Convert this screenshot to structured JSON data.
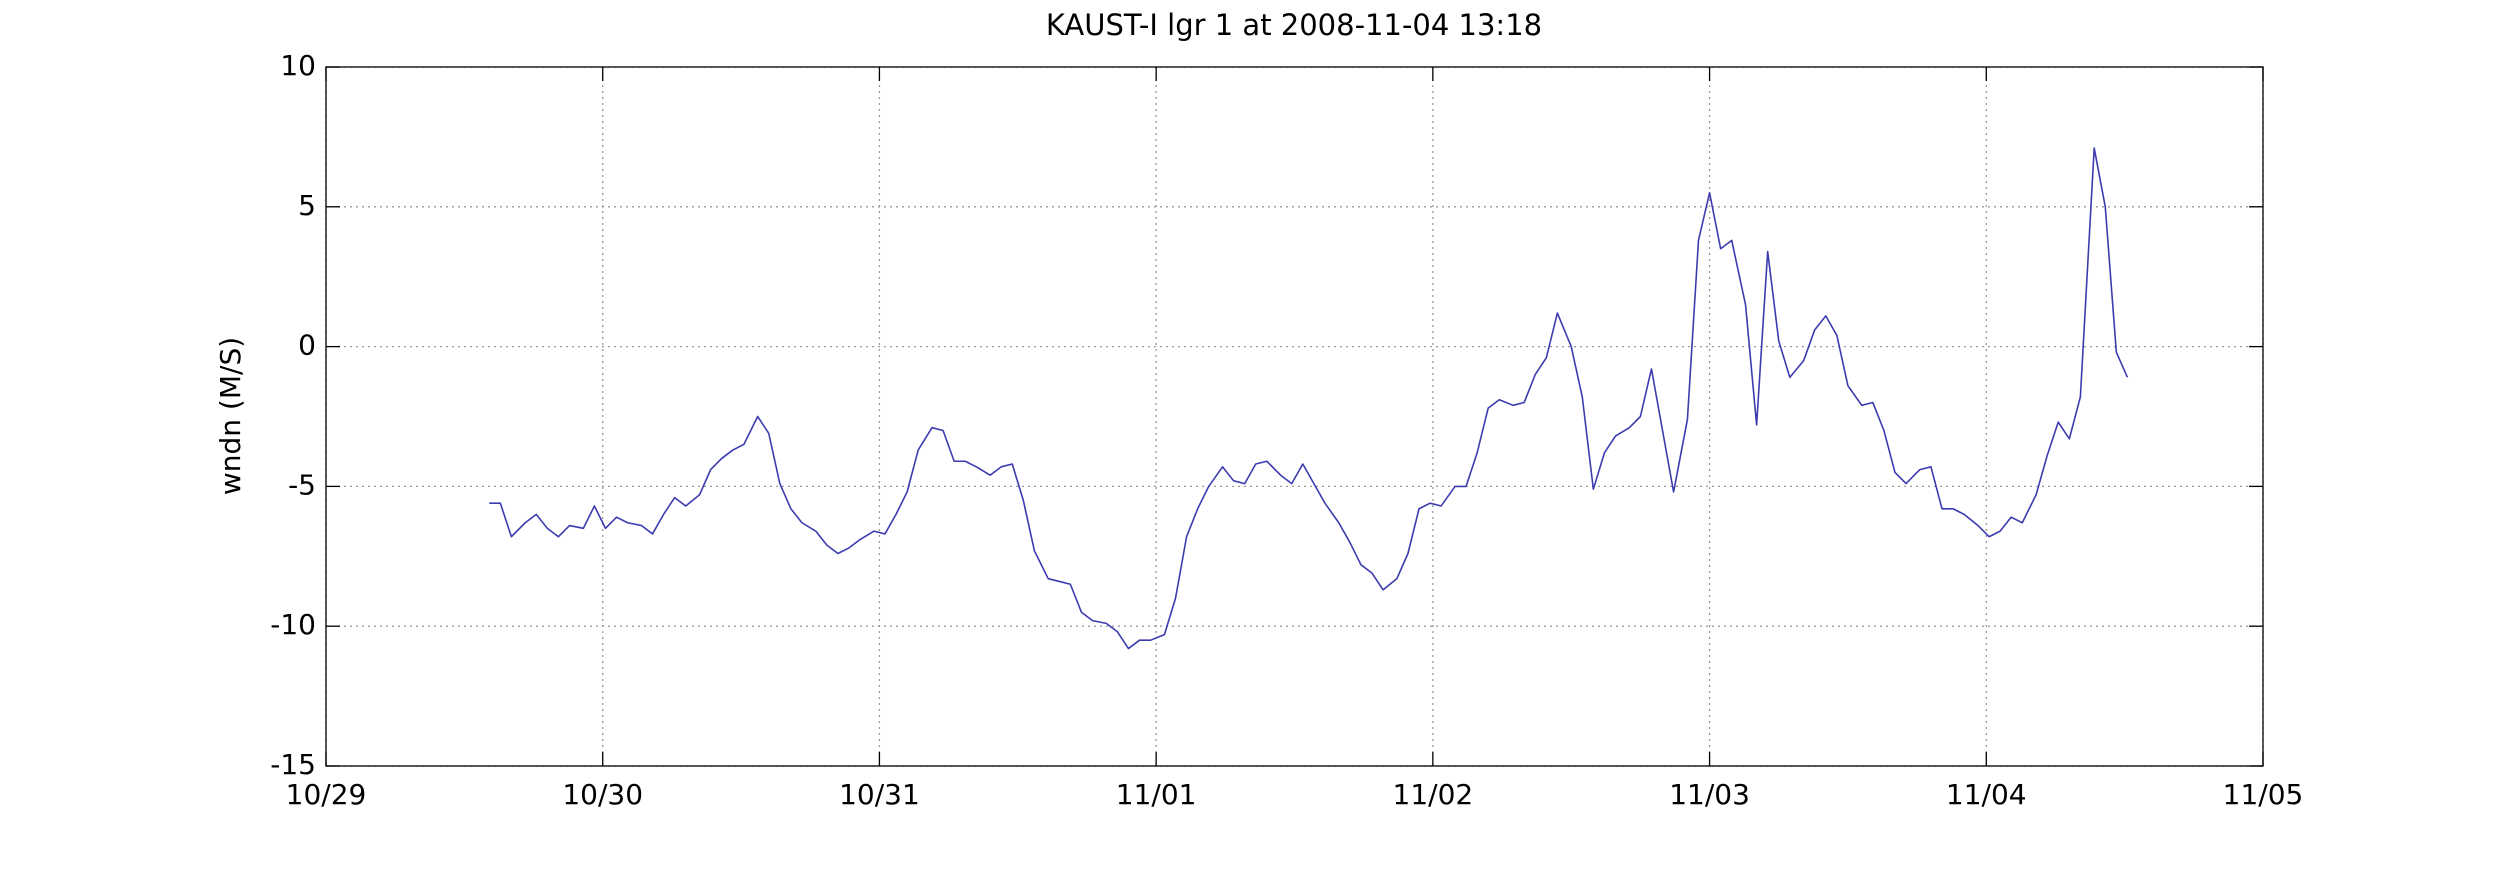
{
  "chart_data": {
    "type": "line",
    "title": "KAUST-I lgr 1 at 2008-11-04 13:18",
    "y_label": "wndn (M/S)",
    "color": "#3c3cb0",
    "grid": true,
    "x": [
      0.59,
      0.63,
      0.67,
      0.72,
      0.76,
      0.8,
      0.84,
      0.88,
      0.93,
      0.97,
      1.01,
      1.05,
      1.09,
      1.14,
      1.18,
      1.22,
      1.26,
      1.3,
      1.35,
      1.39,
      1.43,
      1.47,
      1.51,
      1.56,
      1.6,
      1.64,
      1.68,
      1.72,
      1.77,
      1.81,
      1.85,
      1.89,
      1.93,
      1.98,
      2.02,
      2.06,
      2.1,
      2.14,
      2.19,
      2.23,
      2.27,
      2.31,
      2.35,
      2.4,
      2.44,
      2.48,
      2.52,
      2.56,
      2.61,
      2.65,
      2.69,
      2.73,
      2.77,
      2.82,
      2.86,
      2.9,
      2.94,
      2.98,
      3.03,
      3.07,
      3.11,
      3.15,
      3.19,
      3.24,
      3.28,
      3.32,
      3.36,
      3.4,
      3.45,
      3.49,
      3.53,
      3.57,
      3.61,
      3.66,
      3.7,
      3.74,
      3.78,
      3.82,
      3.87,
      3.91,
      3.95,
      3.99,
      4.03,
      4.08,
      4.12,
      4.16,
      4.2,
      4.24,
      4.29,
      4.33,
      4.37,
      4.41,
      4.45,
      4.5,
      4.54,
      4.58,
      4.62,
      4.66,
      4.71,
      4.75,
      4.79,
      4.83,
      4.87,
      4.92,
      4.96,
      5.0,
      5.04,
      5.08,
      5.13,
      5.17,
      5.21,
      5.25,
      5.29,
      5.34,
      5.38,
      5.42,
      5.46,
      5.5,
      5.55,
      5.59,
      5.63,
      5.67,
      5.71,
      5.76,
      5.8,
      5.84,
      5.88,
      5.92,
      5.97,
      6.01,
      6.05,
      6.09,
      6.13,
      6.18,
      6.22,
      6.26,
      6.3,
      6.34,
      6.39,
      6.43,
      6.47,
      6.51
    ],
    "values": [
      -5.6,
      -5.6,
      -6.8,
      -6.3,
      -6.0,
      -6.5,
      -6.8,
      -6.4,
      -6.5,
      -5.7,
      -6.5,
      -6.1,
      -6.3,
      -6.4,
      -6.7,
      -6.0,
      -5.4,
      -5.7,
      -5.3,
      -4.4,
      -4.0,
      -3.7,
      -3.5,
      -2.5,
      -3.1,
      -4.9,
      -5.8,
      -6.3,
      -6.6,
      -7.1,
      -7.4,
      -7.2,
      -6.9,
      -6.6,
      -6.7,
      -6.0,
      -5.2,
      -3.7,
      -2.9,
      -3.0,
      -4.1,
      -4.1,
      -4.3,
      -4.6,
      -4.3,
      -4.2,
      -5.5,
      -7.3,
      -8.3,
      -8.4,
      -8.5,
      -9.5,
      -9.8,
      -9.9,
      -10.2,
      -10.8,
      -10.5,
      -10.5,
      -10.3,
      -9.0,
      -6.8,
      -5.8,
      -5.0,
      -4.3,
      -4.8,
      -4.9,
      -4.2,
      -4.1,
      -4.6,
      -4.9,
      -4.2,
      -4.9,
      -5.6,
      -6.3,
      -7.0,
      -7.8,
      -8.1,
      -8.7,
      -8.3,
      -7.4,
      -5.8,
      -5.6,
      -5.7,
      -5.0,
      -5.0,
      -3.8,
      -2.2,
      -1.9,
      -2.1,
      -2.0,
      -1.0,
      -0.4,
      1.2,
      0.0,
      -1.8,
      -5.1,
      -3.8,
      -3.2,
      -2.9,
      -2.5,
      -0.8,
      -3.0,
      -5.2,
      -2.6,
      3.8,
      5.5,
      3.5,
      3.8,
      1.5,
      -2.8,
      3.4,
      0.2,
      -1.1,
      -0.5,
      0.6,
      1.1,
      0.4,
      -1.4,
      -2.1,
      -2.0,
      -3.0,
      -4.5,
      -4.9,
      -4.4,
      -4.3,
      -5.8,
      -5.8,
      -6.0,
      -6.4,
      -6.8,
      -6.6,
      -6.1,
      -6.3,
      -5.3,
      -3.9,
      -2.7,
      -3.3,
      -1.8,
      7.1,
      5.0,
      -0.2,
      -1.1
    ],
    "xlim": [
      0,
      7
    ],
    "xticks": [
      {
        "value": 0,
        "label": "10/29"
      },
      {
        "value": 1,
        "label": "10/30"
      },
      {
        "value": 2,
        "label": "10/31"
      },
      {
        "value": 3,
        "label": "11/01"
      },
      {
        "value": 4,
        "label": "11/02"
      },
      {
        "value": 5,
        "label": "11/03"
      },
      {
        "value": 6,
        "label": "11/04"
      },
      {
        "value": 7,
        "label": "11/05"
      }
    ],
    "ylim": [
      -15,
      10
    ],
    "yticks": [
      -15,
      -10,
      -5,
      0,
      5,
      10
    ]
  }
}
